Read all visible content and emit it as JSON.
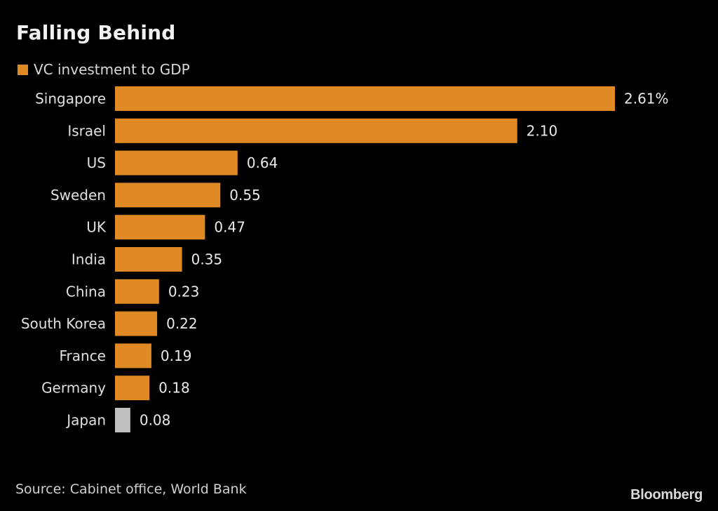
{
  "title": "Falling Behind",
  "source": "Source: Cabinet office, World Bank",
  "logo": "Bloomberg",
  "colors": {
    "background": "#000000",
    "bar": "#e08a26",
    "highlight": "#c0c0c0",
    "text": "#e6e6e6"
  },
  "chart_data": {
    "type": "bar",
    "orientation": "horizontal",
    "title": "Falling Behind",
    "xlabel": "",
    "ylabel": "",
    "legend": [
      {
        "name": "VC investment to GDP",
        "color": "#e08a26"
      }
    ],
    "legend_position": "top-left",
    "categories": [
      "Singapore",
      "Israel",
      "US",
      "Sweden",
      "UK",
      "India",
      "China",
      "South Korea",
      "France",
      "Germany",
      "Japan"
    ],
    "series": [
      {
        "name": "VC investment to GDP",
        "values": [
          2.61,
          2.1,
          0.64,
          0.55,
          0.47,
          0.35,
          0.23,
          0.22,
          0.19,
          0.18,
          0.08
        ]
      }
    ],
    "data_labels": [
      "2.61%",
      "2.10",
      "0.64",
      "0.55",
      "0.47",
      "0.35",
      "0.23",
      "0.22",
      "0.19",
      "0.18",
      "0.08"
    ],
    "highlighted_category": "Japan",
    "xlim": [
      0,
      2.61
    ],
    "grid": false,
    "unit": "%"
  }
}
